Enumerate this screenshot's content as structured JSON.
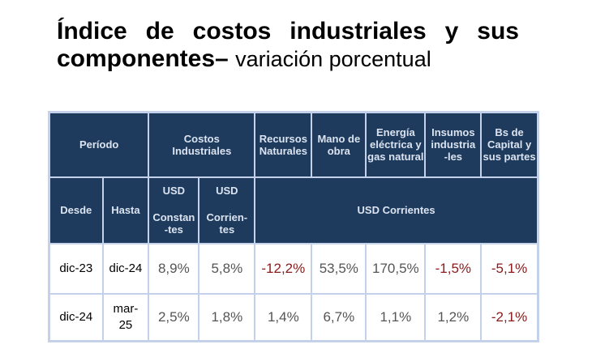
{
  "title": {
    "main": "Índice de costos industriales y sus componentes–",
    "subtitle": "variación porcentual"
  },
  "header_row1": {
    "periodo": "Período",
    "costos": "Costos Industriales",
    "recursos": "Recursos Naturales",
    "mano": "Mano de obra",
    "energia": "Energía eléctrica y gas natural",
    "insumos": "Insumos industria-les",
    "capital": "Bs de Capital y sus partes"
  },
  "header_row2": {
    "desde": "Desde",
    "hasta": "Hasta",
    "usd_const_top": "USD",
    "usd_const_bottom": "Constan-tes",
    "usd_corr_top": "USD",
    "usd_corr_bottom": "Corrien-tes",
    "usd_corrientes": "USD Corrientes"
  },
  "rows": [
    {
      "desde": "dic-23",
      "hasta": "dic-24",
      "values": [
        "8,9%",
        "5,8%",
        "-12,2%",
        "53,5%",
        "170,5%",
        "-1,5%",
        "-5,1%"
      ]
    },
    {
      "desde": "dic-24",
      "hasta": "mar-25",
      "values": [
        "2,5%",
        "1,8%",
        "1,4%",
        "6,7%",
        "1,1%",
        "1,2%",
        "-2,1%"
      ]
    }
  ],
  "colors": {
    "header_bg": "#1e3a5c",
    "negative": "#8b1a1a",
    "border": "#c3d1ea"
  }
}
